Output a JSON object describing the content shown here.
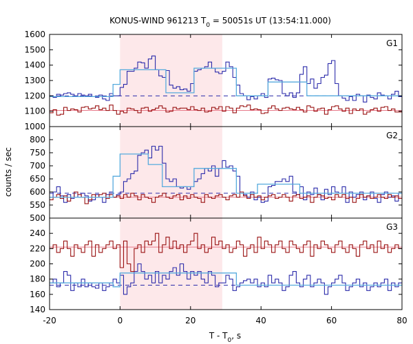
{
  "title": "KONUS-WIND 961213 T",
  "title_sub": "0",
  "title_rest": " = 50051s UT (13:54:11.000)",
  "xlabel": "T - T",
  "xlabel_sub": "0",
  "xlabel_rest": ", s",
  "ylabel": "counts / sec",
  "colors": {
    "blue": "#2a2aaa",
    "red": "#991111",
    "lightblue": "#55aadd",
    "pink": "#e87a8a",
    "shade": "#fde8ea"
  },
  "chart_data": {
    "type": "line",
    "x_range": [
      -20,
      80
    ],
    "x_ticks": [
      -20,
      0,
      20,
      40,
      60,
      80
    ],
    "shaded_interval": [
      0,
      29
    ],
    "panels": [
      {
        "name": "G1",
        "ylim": [
          1000,
          1600
        ],
        "y_ticks": [
          1000,
          1100,
          1200,
          1300,
          1400,
          1500,
          1600
        ],
        "background_level": 1200,
        "red_fit_level": 1105,
        "series": [
          {
            "name": "G1 counts",
            "x_start": -20,
            "bin": 1,
            "values": [
              1200,
              1190,
              1210,
              1205,
              1215,
              1220,
              1210,
              1200,
              1215,
              1205,
              1200,
              1210,
              1195,
              1190,
              1205,
              1180,
              1170,
              1215,
              1200,
              1200,
              1255,
              1275,
              1360,
              1360,
              1380,
              1420,
              1415,
              1380,
              1440,
              1460,
              1370,
              1330,
              1320,
              1365,
              1270,
              1250,
              1260,
              1240,
              1245,
              1230,
              1280,
              1360,
              1370,
              1380,
              1390,
              1420,
              1380,
              1355,
              1345,
              1360,
              1420,
              1390,
              1320,
              1270,
              1215,
              1200,
              1175,
              1195,
              1180,
              1200,
              1215,
              1190,
              1310,
              1315,
              1305,
              1300,
              1215,
              1200,
              1220,
              1190,
              1220,
              1340,
              1390,
              1280,
              1310,
              1250,
              1280,
              1320,
              1335,
              1410,
              1430,
              1280,
              1200,
              1185,
              1170,
              1195,
              1170,
              1210,
              1200,
              1160,
              1205,
              1190,
              1180,
              1220,
              1205,
              1200,
              1180,
              1210,
              1230,
              1195
            ]
          },
          {
            "name": "G1 red",
            "x_start": -20,
            "bin": 1,
            "values": [
              1090,
              1110,
              1075,
              1080,
              1125,
              1105,
              1115,
              1110,
              1095,
              1125,
              1130,
              1115,
              1120,
              1135,
              1110,
              1120,
              1105,
              1140,
              1105,
              1080,
              1100,
              1090,
              1120,
              1115,
              1105,
              1090,
              1120,
              1125,
              1100,
              1110,
              1120,
              1135,
              1120,
              1095,
              1100,
              1125,
              1115,
              1120,
              1120,
              1110,
              1130,
              1110,
              1105,
              1120,
              1095,
              1100,
              1125,
              1115,
              1130,
              1100,
              1130,
              1120,
              1090,
              1120,
              1135,
              1130,
              1140,
              1110,
              1115,
              1110,
              1085,
              1090,
              1120,
              1135,
              1115,
              1105,
              1120,
              1125,
              1115,
              1110,
              1125,
              1110,
              1095,
              1135,
              1125,
              1100,
              1115,
              1120,
              1080,
              1110,
              1130,
              1135,
              1115,
              1100,
              1120,
              1085,
              1115,
              1105,
              1115,
              1080,
              1095,
              1110,
              1120,
              1100,
              1125,
              1130,
              1105,
              1115,
              1095,
              1095
            ]
          },
          {
            "name": "G1 fit",
            "steps": [
              [
                -20,
                1195
              ],
              [
                -2,
                1195
              ],
              [
                -2,
                1275
              ],
              [
                0,
                1275
              ],
              [
                0,
                1370
              ],
              [
                13,
                1370
              ],
              [
                13,
                1220
              ],
              [
                21,
                1220
              ],
              [
                21,
                1380
              ],
              [
                33,
                1380
              ],
              [
                33,
                1200
              ],
              [
                42,
                1200
              ],
              [
                42,
                1290
              ],
              [
                53,
                1290
              ],
              [
                53,
                1200
              ],
              [
                80,
                1200
              ]
            ]
          }
        ]
      },
      {
        "name": "G2",
        "ylim": [
          500,
          850
        ],
        "y_ticks": [
          500,
          550,
          600,
          650,
          700,
          750,
          800
        ],
        "background_level": 595,
        "red_fit_level": 580,
        "series": [
          {
            "name": "G2 counts",
            "x_start": -20,
            "bin": 1,
            "values": [
              580,
              600,
              620,
              585,
              560,
              590,
              575,
              600,
              580,
              595,
              585,
              565,
              570,
              590,
              580,
              560,
              590,
              600,
              580,
              590,
              600,
              640,
              650,
              670,
              680,
              740,
              750,
              760,
              730,
              775,
              760,
              775,
              710,
              650,
              640,
              650,
              620,
              615,
              620,
              610,
              620,
              640,
              650,
              670,
              690,
              680,
              700,
              660,
              690,
              720,
              695,
              700,
              680,
              660,
              600,
              590,
              580,
              600,
              570,
              580,
              560,
              565,
              620,
              625,
              640,
              640,
              650,
              640,
              660,
              600,
              590,
              620,
              570,
              600,
              590,
              615,
              590,
              570,
              610,
              590,
              620,
              600,
              595,
              620,
              560,
              600,
              580,
              590,
              600,
              570,
              585,
              600,
              575,
              560,
              590,
              600,
              580,
              585,
              565,
              595
            ]
          },
          {
            "name": "G2 red",
            "x_start": -20,
            "bin": 1,
            "values": [
              570,
              580,
              590,
              575,
              585,
              565,
              580,
              600,
              590,
              580,
              555,
              570,
              590,
              580,
              590,
              595,
              575,
              590,
              580,
              585,
              575,
              590,
              580,
              595,
              585,
              570,
              590,
              580,
              575,
              560,
              580,
              585,
              595,
              580,
              575,
              585,
              590,
              570,
              585,
              575,
              590,
              580,
              575,
              560,
              590,
              580,
              575,
              585,
              590,
              580,
              570,
              585,
              590,
              580,
              600,
              585,
              575,
              590,
              580,
              585,
              570,
              580,
              585,
              590,
              575,
              580,
              590,
              580,
              565,
              585,
              590,
              575,
              580,
              585,
              560,
              580,
              590,
              585,
              575,
              580,
              570,
              590,
              580,
              590,
              575,
              580,
              560,
              575,
              590,
              580,
              585,
              575,
              580,
              590,
              580,
              575,
              590,
              580,
              585,
              575
            ]
          },
          {
            "name": "G2 fit",
            "steps": [
              [
                -20,
                580
              ],
              [
                -2,
                580
              ],
              [
                -2,
                660
              ],
              [
                0,
                660
              ],
              [
                0,
                745
              ],
              [
                8,
                745
              ],
              [
                8,
                705
              ],
              [
                12,
                705
              ],
              [
                12,
                620
              ],
              [
                21,
                620
              ],
              [
                21,
                690
              ],
              [
                33,
                690
              ],
              [
                33,
                595
              ],
              [
                39,
                595
              ],
              [
                39,
                630
              ],
              [
                51,
                630
              ],
              [
                51,
                595
              ],
              [
                80,
                595
              ]
            ]
          }
        ]
      },
      {
        "name": "G3",
        "ylim": [
          140,
          260
        ],
        "y_ticks": [
          140,
          160,
          180,
          200,
          220,
          240
        ],
        "background_level": 172,
        "red_fit_level": 222,
        "series": [
          {
            "name": "G3 counts",
            "x_start": -20,
            "bin": 1,
            "values": [
              175,
              180,
              170,
              175,
              190,
              185,
              165,
              175,
              170,
              180,
              170,
              175,
              170,
              168,
              175,
              165,
              170,
              175,
              180,
              175,
              185,
              160,
              170,
              175,
              190,
              200,
              190,
              180,
              185,
              175,
              190,
              175,
              185,
              180,
              190,
              195,
              185,
              200,
              190,
              180,
              190,
              185,
              190,
              180,
              175,
              190,
              185,
              170,
              175,
              175,
              185,
              180,
              165,
              170,
              175,
              178,
              180,
              175,
              180,
              170,
              175,
              170,
              185,
              175,
              180,
              175,
              165,
              170,
              185,
              190,
              175,
              170,
              180,
              185,
              170,
              175,
              180,
              175,
              160,
              170,
              175,
              180,
              185,
              175,
              165,
              170,
              175,
              180,
              170,
              175,
              165,
              170,
              175,
              170,
              175,
              180,
              165,
              175,
              170,
              175
            ]
          },
          {
            "name": "G3 red",
            "x_start": -20,
            "bin": 1,
            "values": [
              220,
              225,
              215,
              220,
              230,
              220,
              210,
              225,
              220,
              215,
              225,
              230,
              210,
              225,
              215,
              220,
              225,
              230,
              220,
              225,
              195,
              230,
              200,
              190,
              220,
              225,
              215,
              230,
              225,
              230,
              240,
              215,
              225,
              235,
              220,
              230,
              220,
              225,
              215,
              225,
              230,
              240,
              220,
              225,
              215,
              220,
              235,
              225,
              230,
              220,
              225,
              215,
              220,
              230,
              225,
              210,
              220,
              225,
              215,
              235,
              220,
              230,
              225,
              215,
              225,
              230,
              220,
              215,
              230,
              225,
              220,
              215,
              225,
              230,
              210,
              225,
              220,
              230,
              225,
              220,
              215,
              225,
              230,
              220,
              215,
              225,
              220,
              210,
              225,
              230,
              220,
              225,
              215,
              230,
              220,
              225,
              215,
              220,
              225,
              220
            ]
          },
          {
            "name": "G3 fit",
            "steps": [
              [
                -20,
                175
              ],
              [
                -2,
                175
              ],
              [
                -2,
                170
              ],
              [
                0,
                170
              ],
              [
                0,
                188
              ],
              [
                33,
                188
              ],
              [
                33,
                172
              ],
              [
                80,
                172
              ]
            ]
          }
        ]
      }
    ]
  }
}
